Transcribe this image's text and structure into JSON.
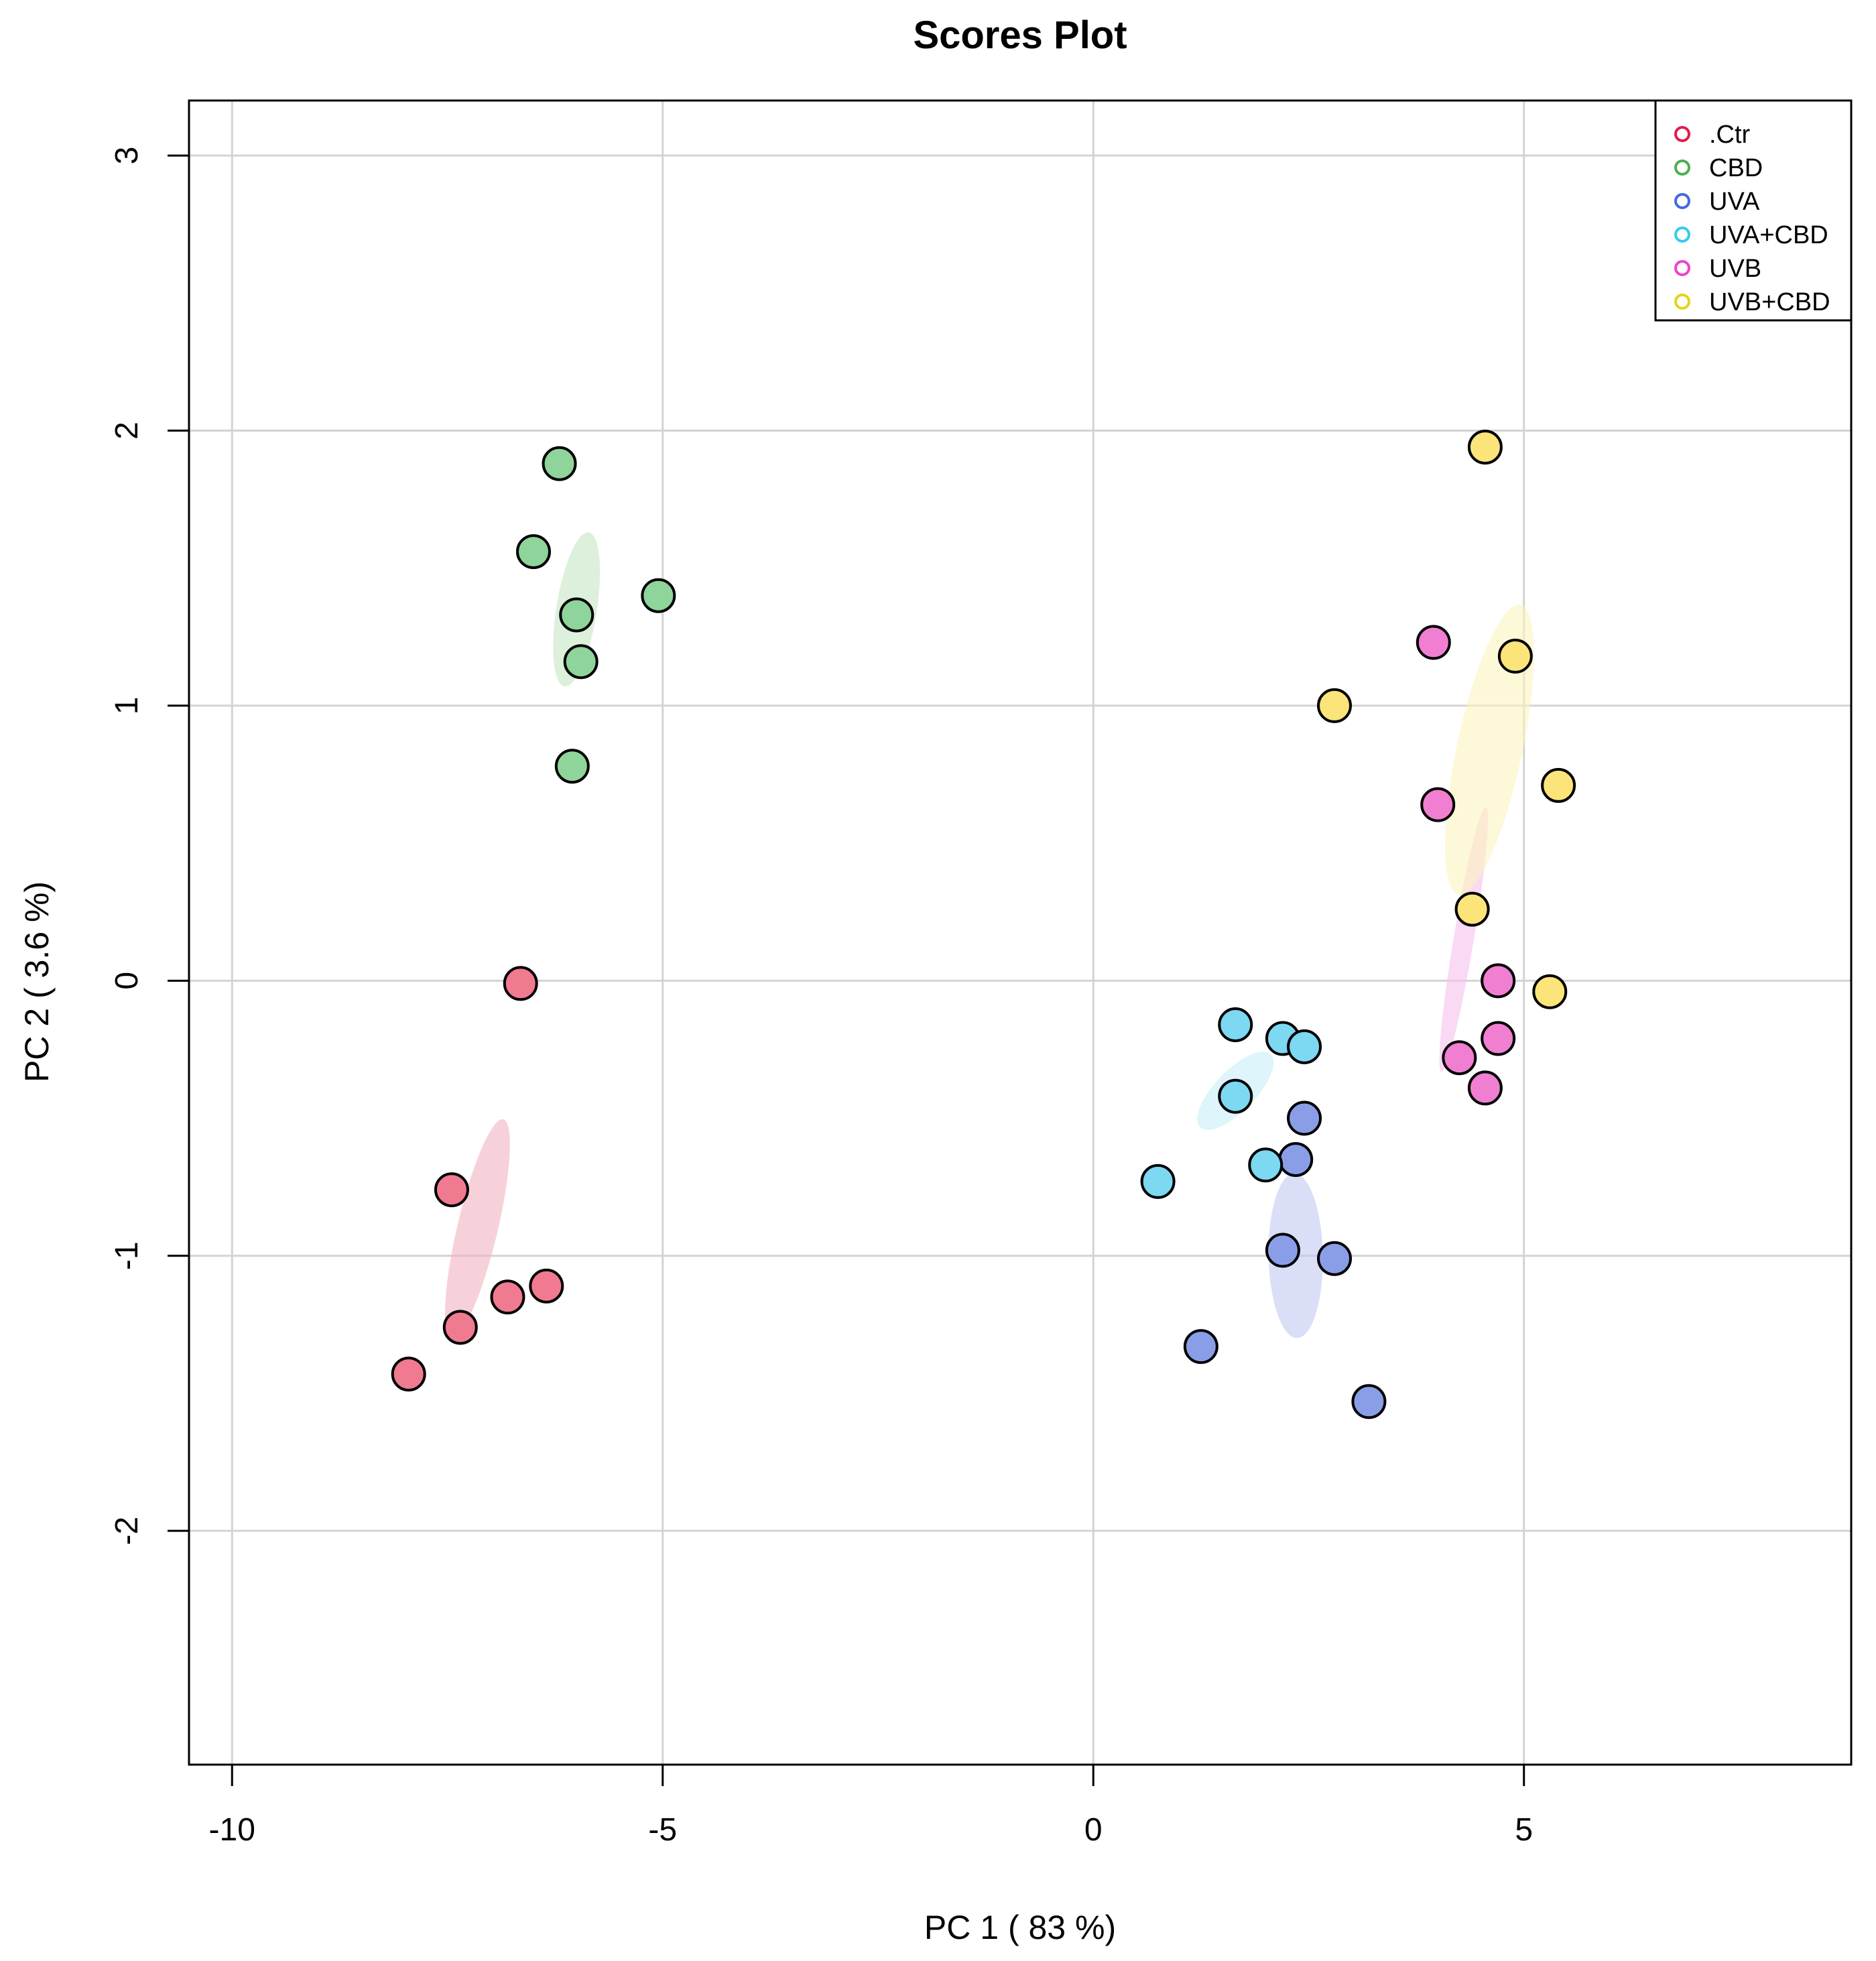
{
  "chart_data": {
    "type": "scatter",
    "title": "Scores Plot",
    "xlabel": "PC 1 ( 83 %)",
    "ylabel": "PC 2 ( 3.6 %)",
    "xlim": [
      -10.5,
      8.8
    ],
    "ylim": [
      -2.85,
      3.2
    ],
    "grid": true,
    "legend_position": "top-right",
    "x_ticks": [
      {
        "value": -10,
        "label": "-10"
      },
      {
        "value": -5,
        "label": "-5"
      },
      {
        "value": 0,
        "label": "0"
      },
      {
        "value": 5,
        "label": "5"
      }
    ],
    "y_ticks": [
      {
        "value": -2,
        "label": "-2"
      },
      {
        "value": -1,
        "label": "-1"
      },
      {
        "value": 0,
        "label": "0"
      },
      {
        "value": 1,
        "label": "1"
      },
      {
        "value": 2,
        "label": "2"
      },
      {
        "value": 3,
        "label": "3"
      }
    ],
    "series": [
      {
        "name": ".Ctr",
        "color": "#E41A4B",
        "fill": "#F07A90",
        "ellipse_fill": "#F2B3C1",
        "ellipse": {
          "cx": -7.15,
          "cy": -0.9,
          "rx": 1.3,
          "ry": 0.235,
          "angle": 76.7
        },
        "points": [
          [
            -6.65,
            -0.01
          ],
          [
            -7.45,
            -0.76
          ],
          [
            -6.35,
            -1.11
          ],
          [
            -6.8,
            -1.15
          ],
          [
            -7.35,
            -1.26
          ],
          [
            -7.95,
            -1.43
          ]
        ]
      },
      {
        "name": "CBD",
        "color": "#4CAF50",
        "fill": "#8FD49A",
        "ellipse_fill": "#C4E6C4",
        "ellipse": {
          "cx": -6.0,
          "cy": 1.35,
          "rx": 0.905,
          "ry": 0.235,
          "angle": 81.0
        },
        "points": [
          [
            -6.2,
            1.88
          ],
          [
            -6.5,
            1.56
          ],
          [
            -6.0,
            1.33
          ],
          [
            -5.05,
            1.4
          ],
          [
            -5.95,
            1.16
          ],
          [
            -6.05,
            0.78
          ]
        ]
      },
      {
        "name": "UVA",
        "color": "#4169E1",
        "fill": "#8A9EE8",
        "ellipse_fill": "#C2C8F2",
        "ellipse": {
          "cx": 2.35,
          "cy": -1.0,
          "rx": 0.955,
          "ry": 0.315,
          "angle": 91.0
        },
        "points": [
          [
            2.45,
            -0.5
          ],
          [
            2.35,
            -0.65
          ],
          [
            2.2,
            -0.98
          ],
          [
            2.8,
            -1.01
          ],
          [
            1.25,
            -1.33
          ],
          [
            3.2,
            -1.53
          ]
        ]
      },
      {
        "name": "UVA+CBD",
        "color": "#33CCEE",
        "fill": "#7DD8F2",
        "ellipse_fill": "#C6EEF8",
        "ellipse": {
          "cx": 1.65,
          "cy": -0.4,
          "rx": 0.59,
          "ry": 0.235,
          "angle": 46.0
        },
        "points": [
          [
            1.65,
            -0.16
          ],
          [
            2.2,
            -0.21
          ],
          [
            2.45,
            -0.24
          ],
          [
            1.65,
            -0.42
          ],
          [
            2.0,
            -0.67
          ],
          [
            0.75,
            -0.73
          ]
        ]
      },
      {
        "name": "UVB",
        "color": "#EE44CC",
        "fill": "#F07FD2",
        "ellipse_fill": "#F7C0EC",
        "ellipse": {
          "cx": 4.3,
          "cy": 0.15,
          "rx": 1.56,
          "ry": 0.117,
          "angle": 80.5
        },
        "points": [
          [
            3.95,
            1.23
          ],
          [
            4.0,
            0.64
          ],
          [
            4.7,
            0.0
          ],
          [
            4.7,
            -0.21
          ],
          [
            4.25,
            -0.28
          ],
          [
            4.55,
            -0.39
          ]
        ]
      },
      {
        "name": "UVB+CBD",
        "color": "#E8D21A",
        "fill": "#FBE57A",
        "ellipse_fill": "#FCF3BE",
        "ellipse": {
          "cx": 4.6,
          "cy": 0.84,
          "rx": 1.72,
          "ry": 0.38,
          "angle": 78.0
        },
        "points": [
          [
            4.55,
            1.94
          ],
          [
            4.9,
            1.18
          ],
          [
            2.8,
            1.0
          ],
          [
            5.4,
            0.71
          ],
          [
            4.4,
            0.26
          ],
          [
            5.3,
            -0.04
          ]
        ]
      }
    ]
  }
}
